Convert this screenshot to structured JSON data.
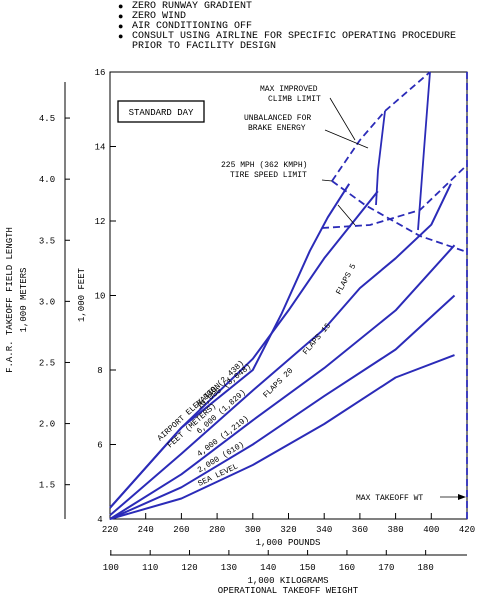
{
  "notes": [
    {
      "text": "ZERO RUNWAY GRADIENT",
      "bullet": true
    },
    {
      "text": "ZERO WIND",
      "bullet": true
    },
    {
      "text": "AIR CONDITIONING OFF",
      "bullet": true
    },
    {
      "text": "CONSULT USING AIRLINE FOR SPECIFIC OPERATING PROCEDURE",
      "bullet": true
    },
    {
      "text": "PRIOR TO FACILITY DESIGN",
      "bullet": false
    }
  ],
  "chart_data": {
    "type": "line",
    "box_label": "STANDARD DAY",
    "xlabel": "1,000 POUNDS",
    "x2label": "1,000 KILOGRAMS",
    "x2label_line2": "OPERATIONAL TAKEOFF WEIGHT",
    "ylabel": "1,000 FEET",
    "y2label": "F.A.R. TAKEOFF FIELD LENGTH",
    "y2label_line2": "1,000 METERS",
    "xlim": [
      220,
      420
    ],
    "ylim": [
      4,
      16
    ],
    "x_ticks": [
      "220",
      "240",
      "260",
      "280",
      "300",
      "320",
      "340",
      "360",
      "380",
      "400",
      "420"
    ],
    "y_ticks": [
      "4",
      "6",
      "8",
      "10",
      "12",
      "14",
      "16"
    ],
    "x2_ticks": [
      {
        "value": 100,
        "label": "100"
      },
      {
        "value": 110,
        "label": "110"
      },
      {
        "value": 120,
        "label": "120"
      },
      {
        "value": 130,
        "label": "130"
      },
      {
        "value": 140,
        "label": "140"
      },
      {
        "value": 150,
        "label": "150"
      },
      {
        "value": 160,
        "label": "160"
      },
      {
        "value": 170,
        "label": "170"
      },
      {
        "value": 180,
        "label": "180"
      }
    ],
    "y2_ticks": [
      {
        "value": 1.5,
        "label": "1.5"
      },
      {
        "value": 2.0,
        "label": "2.0"
      },
      {
        "value": 2.5,
        "label": "2.5"
      },
      {
        "value": 3.0,
        "label": "3.0"
      },
      {
        "value": 3.5,
        "label": "3.5"
      },
      {
        "value": 4.0,
        "label": "4.0"
      },
      {
        "value": 4.5,
        "label": "4.5"
      }
    ],
    "line_color": "#2b2bb8",
    "series": [
      {
        "name": "SEA LEVEL",
        "x": [
          220,
          260,
          300,
          340,
          380,
          413
        ],
        "y": [
          4.0,
          4.55,
          5.45,
          6.55,
          7.8,
          8.4
        ]
      },
      {
        "name": "2,000 (610)",
        "x": [
          220,
          260,
          300,
          340,
          380,
          413
        ],
        "y": [
          4.0,
          4.85,
          6.0,
          7.3,
          8.55,
          10.0
        ]
      },
      {
        "name": "4,000 (1,219)",
        "x": [
          220,
          260,
          300,
          340,
          380,
          413
        ],
        "y": [
          4.0,
          5.2,
          6.65,
          8.05,
          9.6,
          11.35
        ]
      },
      {
        "name": "6,000 (1,829)",
        "x": [
          220,
          260,
          300,
          340,
          360,
          380,
          400,
          411
        ],
        "y": [
          4.1,
          5.75,
          7.45,
          9.1,
          10.2,
          11.0,
          11.9,
          13.0
        ]
      },
      {
        "name": "8,000 (2,438)",
        "x": [
          220,
          260,
          300,
          320,
          340,
          360,
          370
        ],
        "y": [
          4.3,
          6.45,
          8.3,
          9.6,
          11.0,
          12.2,
          12.8
        ]
      },
      {
        "name": "10,000 (3,048)",
        "x": [
          220,
          260,
          300,
          316,
          332,
          342,
          354
        ],
        "y": [
          4.3,
          6.45,
          8.0,
          9.5,
          11.2,
          12.1,
          13.0
        ]
      }
    ],
    "annotations": [
      "MAX IMPROVED",
      "CLIMB LIMIT",
      "UNBALANCED FOR",
      "BRAKE ENERGY",
      "225 MPH (362 KMPH)",
      "TIRE SPEED LIMIT",
      "MAX TAKEOFF WT",
      "FLAPS 5",
      "FLAPS 15",
      "FLAPS 20",
      "AIRPORT ELEVATION",
      "FEET (METERS)"
    ],
    "max_takeoff_weight": 413,
    "grid": false
  }
}
